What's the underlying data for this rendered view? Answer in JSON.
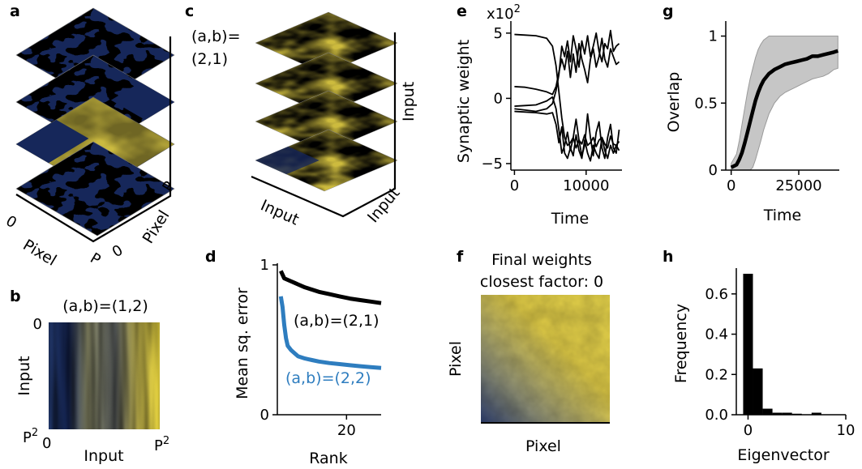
{
  "colors": {
    "dark": "#16275a",
    "light": "#e5d23b",
    "blue": "#2e7dbf",
    "black": "#000000",
    "band": "#c6c6c6"
  },
  "panels": {
    "a": {
      "label": "a",
      "axes": {
        "x0": "0",
        "xlabel": "Pixel",
        "xend": "P",
        "y0": "0",
        "ylabel": "Pixel",
        "yend": "P"
      }
    },
    "b": {
      "label": "b",
      "title": "(a,b)=(1,2)",
      "ytop": "0",
      "ylabel": "Input",
      "ybottom": "P",
      "ybottom_sup": "2",
      "xleft": "0",
      "xlabel": "Input",
      "xright": "P",
      "xright_sup": "2"
    },
    "c": {
      "label": "c",
      "annot_line1": "(a,b)=",
      "annot_line2": "(2,1)",
      "xlabel": "Input",
      "ylabel": "Input",
      "zlabel": "Input"
    },
    "f": {
      "label": "f",
      "title_line1": "Final weights",
      "title_line2": "closest factor: 0",
      "xlabel": "Pixel",
      "ylabel": "Pixel"
    }
  },
  "chart_data": [
    {
      "id": "d",
      "label": "d",
      "type": "line",
      "xlabel": "Rank",
      "ylabel": "Mean sq. error",
      "xlim": [
        0,
        30
      ],
      "ylim": [
        0,
        1
      ],
      "xticks": [
        20
      ],
      "xtick_labels": [
        "20"
      ],
      "yticks": [
        0,
        1
      ],
      "ytick_labels": [
        "0",
        "1"
      ],
      "annotations": [
        "(a,b)=(2,1)",
        "(a,b)=(2,2)"
      ],
      "series": [
        {
          "color": "#000000",
          "x": [
            1,
            2,
            3,
            4,
            5,
            6,
            8,
            10,
            12,
            15,
            18,
            21,
            24,
            27,
            30
          ],
          "y": [
            0.96,
            0.91,
            0.9,
            0.89,
            0.88,
            0.87,
            0.85,
            0.835,
            0.82,
            0.805,
            0.79,
            0.775,
            0.765,
            0.755,
            0.745
          ]
        },
        {
          "color": "#2e7dbf",
          "x": [
            1,
            1.5,
            2,
            2.5,
            3,
            4,
            5,
            6,
            8,
            10,
            12,
            15,
            18,
            21,
            24,
            27,
            30
          ],
          "y": [
            0.79,
            0.72,
            0.6,
            0.51,
            0.46,
            0.43,
            0.41,
            0.39,
            0.375,
            0.365,
            0.355,
            0.345,
            0.338,
            0.33,
            0.324,
            0.318,
            0.312
          ]
        }
      ]
    },
    {
      "id": "e",
      "label": "e",
      "type": "line",
      "xlabel": "Time",
      "ylabel": "Synaptic weight",
      "yscale_label": "x10",
      "yscale_exp": "2",
      "xlim": [
        -500,
        15000
      ],
      "ylim": [
        -5.5,
        5.8
      ],
      "xticks": [
        0,
        10000
      ],
      "xtick_labels": [
        "0",
        "10000"
      ],
      "yticks": [
        -5,
        0,
        5
      ],
      "ytick_labels": [
        "−5",
        "0",
        "5"
      ],
      "series": [
        {
          "color": "#000000",
          "x": [
            0,
            1500,
            3000,
            4500,
            5300,
            5800,
            6200,
            6600,
            7000,
            7400,
            7800,
            8200,
            8600,
            9000,
            9400,
            9800,
            10200,
            10600,
            11000,
            11400,
            11800,
            12200,
            12600,
            13000,
            13400,
            13800,
            14200,
            14600
          ],
          "y": [
            4.9,
            4.85,
            4.8,
            4.6,
            4.0,
            2.5,
            0.5,
            -1.5,
            -3.0,
            -3.6,
            -3.4,
            -3.0,
            -3.8,
            -3.2,
            -3.5,
            -2.8,
            -3.6,
            -3.4,
            -3.0,
            -3.7,
            -3.2,
            -3.0,
            -3.5,
            -3.8,
            -2.9,
            -3.5,
            -3.6,
            -3.3
          ]
        },
        {
          "color": "#000000",
          "x": [
            0,
            1500,
            3000,
            4500,
            5300,
            5800,
            6200,
            6600,
            7000,
            7400,
            7800,
            8200,
            8600,
            9000,
            9400,
            9800,
            10200,
            10600,
            11000,
            11400,
            11800,
            12200,
            12600,
            13000,
            13400,
            13800,
            14200,
            14600
          ],
          "y": [
            0.9,
            0.85,
            0.7,
            0.5,
            0.3,
            0.9,
            2.0,
            3.0,
            2.2,
            3.6,
            1.6,
            3.4,
            2.0,
            4.2,
            3.0,
            2.2,
            1.2,
            3.0,
            3.8,
            2.4,
            3.2,
            4.6,
            3.0,
            2.4,
            3.8,
            3.2,
            2.6,
            2.8
          ]
        },
        {
          "color": "#000000",
          "x": [
            0,
            1500,
            3000,
            4500,
            5300,
            5800,
            6200,
            6600,
            7000,
            7400,
            7800,
            8200,
            8600,
            9000,
            9400,
            9800,
            10200,
            10600,
            11000,
            11400,
            11800,
            12200,
            12600,
            13000,
            13400,
            13800,
            14200,
            14600
          ],
          "y": [
            -0.6,
            -0.55,
            -0.5,
            -0.2,
            0.1,
            -0.8,
            -2.4,
            -4.2,
            -3.6,
            -2.6,
            -4.0,
            -3.0,
            -1.6,
            -3.2,
            -4.4,
            -3.6,
            -1.2,
            -3.0,
            -4.4,
            -2.6,
            -1.8,
            -3.8,
            -4.6,
            -3.0,
            -2.0,
            -3.8,
            -4.2,
            -2.4
          ]
        },
        {
          "color": "#000000",
          "x": [
            0,
            1500,
            3000,
            4500,
            5300,
            5800,
            6200,
            6600,
            7000,
            7400,
            7800,
            8200,
            8600,
            9000,
            9400,
            9800,
            10200,
            10600,
            11000,
            11400,
            11800,
            12200,
            12600,
            13000,
            13400,
            13800,
            14200,
            14600
          ],
          "y": [
            -0.8,
            -0.9,
            -1.0,
            -0.8,
            -0.4,
            0.6,
            1.8,
            4.0,
            3.2,
            4.4,
            2.8,
            4.8,
            3.8,
            2.4,
            4.4,
            3.4,
            4.8,
            3.2,
            4.0,
            5.0,
            3.6,
            2.8,
            4.2,
            3.8,
            5.2,
            3.6,
            4.0,
            4.2
          ]
        },
        {
          "color": "#000000",
          "x": [
            0,
            1500,
            3000,
            4500,
            5300,
            5800,
            6200,
            6600,
            7000,
            7400,
            7800,
            8200,
            8600,
            9000,
            9400,
            9800,
            10200,
            10600,
            11000,
            11400,
            11800,
            12200,
            12600,
            13000,
            13400,
            13800,
            14200,
            14600
          ],
          "y": [
            -1.0,
            -1.05,
            -1.1,
            -1.2,
            -1.1,
            -2.0,
            -3.4,
            -2.2,
            -4.2,
            -4.6,
            -3.8,
            -4.4,
            -2.8,
            -4.0,
            -4.6,
            -3.2,
            -4.2,
            -4.8,
            -3.6,
            -4.2,
            -4.6,
            -3.0,
            -4.0,
            -4.6,
            -3.6,
            -4.2,
            -3.6,
            -4.0
          ]
        }
      ]
    },
    {
      "id": "g",
      "label": "g",
      "type": "line",
      "xlabel": "Time",
      "ylabel": "Overlap",
      "xlim": [
        -2000,
        40000
      ],
      "ylim": [
        0,
        1.1
      ],
      "xticks": [
        0,
        25000
      ],
      "xtick_labels": [
        "0",
        "25000"
      ],
      "yticks": [
        0,
        0.5,
        1
      ],
      "ytick_labels": [
        "0",
        "0.5",
        "1"
      ],
      "series": [
        {
          "color": "#000000",
          "x": [
            0,
            2000,
            3000,
            4000,
            5000,
            6000,
            7000,
            8000,
            9000,
            10000,
            11000,
            12000,
            14000,
            16000,
            18000,
            20000,
            22000,
            24000,
            26000,
            28000,
            30000,
            32000,
            34000,
            36000,
            38000,
            39500
          ],
          "y": [
            0.02,
            0.04,
            0.08,
            0.13,
            0.2,
            0.28,
            0.36,
            0.44,
            0.52,
            0.58,
            0.63,
            0.67,
            0.72,
            0.75,
            0.77,
            0.79,
            0.8,
            0.81,
            0.82,
            0.83,
            0.85,
            0.85,
            0.86,
            0.87,
            0.88,
            0.89
          ]
        }
      ],
      "band": {
        "x": [
          0,
          2000,
          3000,
          4000,
          5000,
          6000,
          7000,
          8000,
          9000,
          10000,
          11000,
          12000,
          14000,
          16000,
          18000,
          20000,
          22000,
          24000,
          26000,
          28000,
          30000,
          32000,
          34000,
          36000,
          38000,
          39500
        ],
        "lower": [
          0,
          0,
          0,
          0,
          0,
          0,
          0,
          0.02,
          0.08,
          0.15,
          0.22,
          0.3,
          0.42,
          0.5,
          0.55,
          0.58,
          0.6,
          0.62,
          0.64,
          0.66,
          0.68,
          0.69,
          0.7,
          0.72,
          0.75,
          0.76
        ],
        "upper": [
          0.05,
          0.12,
          0.22,
          0.34,
          0.46,
          0.58,
          0.68,
          0.76,
          0.84,
          0.9,
          0.94,
          0.97,
          1.0,
          1.0,
          1.0,
          1.0,
          1.0,
          1.0,
          1.0,
          1.0,
          1.0,
          1.0,
          1.0,
          1.0,
          1.0,
          1.0
        ]
      }
    },
    {
      "id": "h",
      "label": "h",
      "type": "bar",
      "xlabel": "Eigenvector",
      "ylabel": "Frequency",
      "xlim": [
        -1.2,
        10
      ],
      "ylim": [
        0,
        0.72
      ],
      "xticks": [
        0,
        10
      ],
      "xtick_labels": [
        "0",
        "10"
      ],
      "yticks": [
        0,
        0.2,
        0.4,
        0.6
      ],
      "ytick_labels": [
        "0.0",
        "0.2",
        "0.4",
        "0.6"
      ],
      "bins": [
        [
          -0.5,
          0.5
        ],
        [
          0.5,
          1.5
        ],
        [
          1.5,
          2.5
        ],
        [
          2.5,
          3.5
        ],
        [
          3.5,
          4.5
        ],
        [
          4.5,
          5.5
        ],
        [
          5.5,
          6.5
        ],
        [
          6.5,
          7.5
        ],
        [
          7.5,
          8.5
        ]
      ],
      "values": [
        0.7,
        0.23,
        0.03,
        0.01,
        0.01,
        0.005,
        0.0,
        0.01,
        0.0
      ]
    }
  ]
}
